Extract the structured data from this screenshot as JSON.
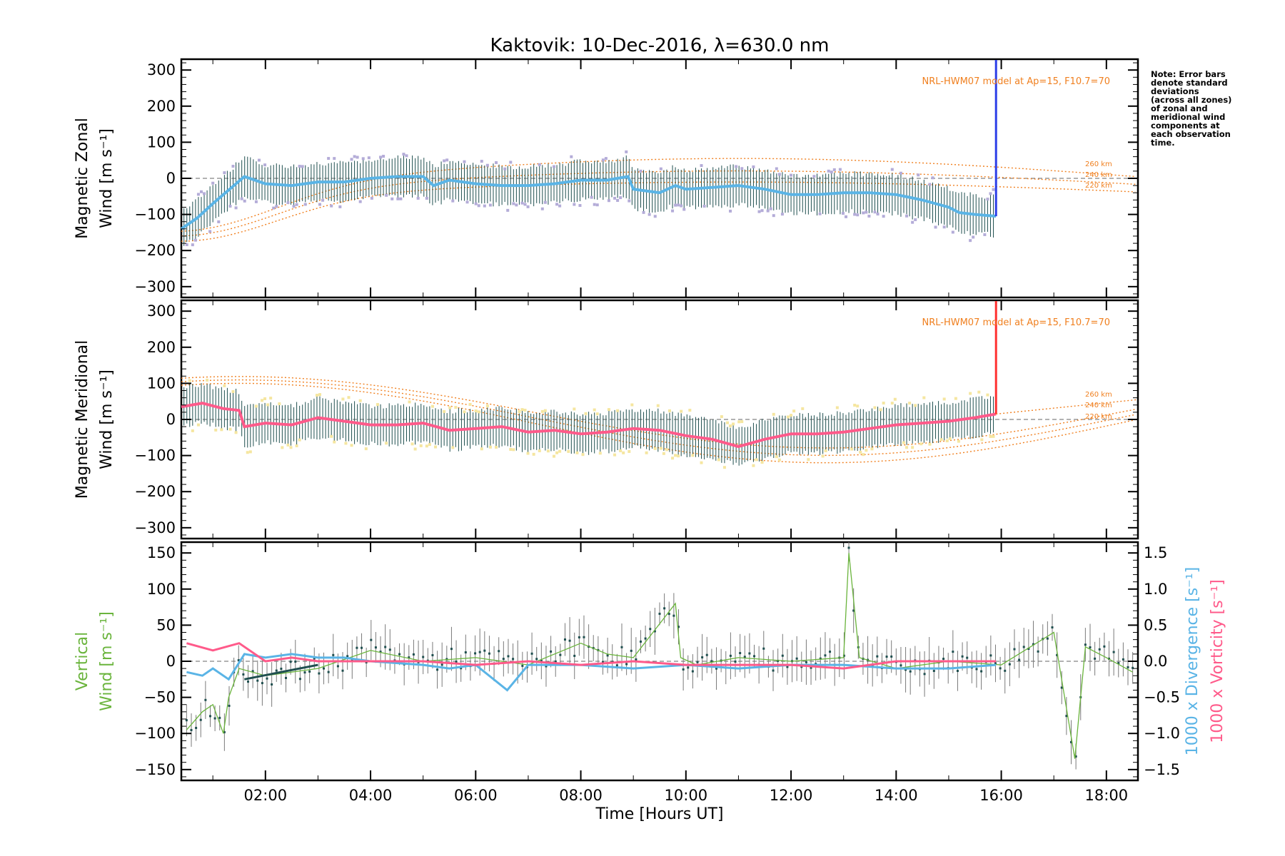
{
  "title": "Kaktovik: 10-Dec-2016, λ=630.0 nm",
  "note": "Note: Error bars denote standard deviations (across all zones) of zonal and meridional wind components at each observation time.",
  "note_lines": [
    "Note: Error bars",
    "denote standard",
    "deviations",
    "(across all zones)",
    "of zonal and",
    "meridional wind",
    "components at",
    "each observation",
    "time."
  ],
  "xlabel": "Time [Hours UT]",
  "x_ticks": [
    "02:00",
    "04:00",
    "06:00",
    "08:00",
    "10:00",
    "12:00",
    "14:00",
    "16:00",
    "18:00"
  ],
  "panels": {
    "zonal": {
      "ylabel_line1": "Magnetic Zonal",
      "ylabel_line2": "Wind [m s⁻¹]",
      "y_ticks": [
        "300",
        "200",
        "100",
        "0",
        "−100",
        "−200",
        "−300"
      ],
      "model_label": "NRL-HWM07 model at Ap=15, F10.7=70",
      "altitude_labels": [
        "260 km",
        "240 km",
        "220 km"
      ]
    },
    "meridional": {
      "ylabel_line1": "Magnetic Meridional",
      "ylabel_line2": "Wind [m s⁻¹]",
      "y_ticks": [
        "300",
        "200",
        "100",
        "0",
        "−100",
        "−200",
        "−300"
      ],
      "model_label": "NRL-HWM07 model at Ap=15, F10.7=70",
      "altitude_labels": [
        "260 km",
        "240 km",
        "220 km"
      ]
    },
    "vertical": {
      "ylabel_line1": "Vertical",
      "ylabel_line2": "Wind [m s⁻¹]",
      "y_ticks": [
        "150",
        "100",
        "50",
        "0",
        "−50",
        "−100",
        "−150"
      ],
      "right_ticks": [
        "1.5",
        "1.0",
        "0.5",
        "0.0",
        "−0.5",
        "−1.0",
        "−1.5"
      ],
      "right_label_div": "1000 x Divergence [s⁻¹]",
      "right_label_vort": "1000 x Vorticity [s⁻¹]"
    }
  },
  "colors": {
    "zonal_mean": "#5ab4e6",
    "zonal_end": "#2c3ee8",
    "zonal_scatter": "#b4acd8",
    "meridional_mean": "#ff5a8a",
    "meridional_end": "#ff3030",
    "meridional_scatter": "#f5e6a0",
    "error_bar": "#1f4f4f",
    "model": "#f08020",
    "vertical": "#6ab43c",
    "divergence": "#5ab4e6",
    "vorticity": "#ff5a8a"
  },
  "chart_data": [
    {
      "type": "line",
      "panel": "zonal",
      "x_unit": "hours UT",
      "xlim": [
        0.4,
        18.6
      ],
      "ylim": [
        -330,
        330
      ],
      "ylabel": "Magnetic Zonal Wind [m s-1]",
      "series": [
        {
          "x": [
            0.4,
            0.7,
            1.0,
            1.4,
            1.6,
            2.0,
            2.5,
            3.0,
            3.5,
            4.0,
            4.5,
            5.0,
            5.2,
            5.5,
            6.0,
            6.5,
            7.0,
            7.5,
            8.0,
            8.5,
            8.9,
            9.0,
            9.5,
            9.8,
            10.0,
            10.5,
            11.0,
            11.5,
            12.0,
            12.5,
            13.0,
            13.5,
            14.0,
            14.5,
            15.0,
            15.2,
            15.5,
            15.9
          ],
          "y": [
            -140,
            -110,
            -70,
            -20,
            5,
            -15,
            -20,
            -10,
            -10,
            0,
            5,
            5,
            -20,
            -5,
            -15,
            -20,
            -20,
            -15,
            -5,
            -5,
            5,
            -30,
            -40,
            -20,
            -30,
            -25,
            -20,
            -30,
            -45,
            -45,
            -40,
            -40,
            -45,
            -60,
            -80,
            -95,
            -100,
            -105
          ]
        }
      ]
    },
    {
      "type": "line",
      "panel": "meridional",
      "x_unit": "hours UT",
      "xlim": [
        0.4,
        18.6
      ],
      "ylim": [
        -330,
        330
      ],
      "ylabel": "Magnetic Meridional Wind [m s-1]",
      "series": [
        {
          "x": [
            0.4,
            0.8,
            1.2,
            1.5,
            1.6,
            2.0,
            2.5,
            3.0,
            3.5,
            4.0,
            4.5,
            5.0,
            5.5,
            6.0,
            6.5,
            7.0,
            7.5,
            8.0,
            8.5,
            9.0,
            9.5,
            10.0,
            10.5,
            11.0,
            11.5,
            12.0,
            12.5,
            13.0,
            13.5,
            14.0,
            14.5,
            15.0,
            15.5,
            15.9
          ],
          "y": [
            35,
            45,
            30,
            25,
            -20,
            -10,
            -15,
            5,
            -5,
            -15,
            -15,
            -10,
            -30,
            -25,
            -20,
            -35,
            -30,
            -40,
            -35,
            -25,
            -30,
            -45,
            -55,
            -75,
            -55,
            -40,
            -40,
            -35,
            -25,
            -15,
            -10,
            -5,
            5,
            15
          ]
        }
      ]
    },
    {
      "type": "line",
      "panel": "vertical",
      "x_unit": "hours UT",
      "xlim": [
        0.4,
        18.6
      ],
      "ylim": [
        -165,
        165
      ],
      "y2lim": [
        -1.65,
        1.65
      ],
      "ylabel": "Vertical Wind [m s-1]",
      "y2label": "1000 x Divergence / Vorticity [s-1]",
      "series": [
        {
          "name": "Vertical",
          "x": [
            0.5,
            0.8,
            1.0,
            1.2,
            1.3,
            1.5,
            2.0,
            3.0,
            4.0,
            5.0,
            6.0,
            7.0,
            8.0,
            8.5,
            9.0,
            9.8,
            9.9,
            10.2,
            11.0,
            12.0,
            13.0,
            13.1,
            13.3,
            14.0,
            15.0,
            16.0,
            17.0,
            17.4,
            17.6,
            18.0,
            18.5
          ],
          "y": [
            -95,
            -70,
            -60,
            -100,
            -50,
            -10,
            -20,
            -10,
            15,
            0,
            5,
            -5,
            25,
            10,
            5,
            80,
            5,
            -5,
            5,
            0,
            5,
            150,
            5,
            -10,
            0,
            -5,
            40,
            -135,
            20,
            5,
            -15
          ]
        },
        {
          "name": "1000 x Divergence",
          "x": [
            0.5,
            0.8,
            1.0,
            1.3,
            1.6,
            2.0,
            2.5,
            3.0,
            3.5,
            4.0,
            5.0,
            5.5,
            6.0,
            6.6,
            7.0,
            8.0,
            9.0,
            10.0,
            11.0,
            12.0,
            13.0,
            14.0,
            15.0,
            15.9
          ],
          "y": [
            -0.15,
            -0.2,
            -0.1,
            -0.25,
            0.1,
            0.05,
            0.1,
            0.05,
            0.05,
            0.0,
            -0.05,
            -0.1,
            -0.05,
            -0.4,
            -0.05,
            -0.05,
            -0.1,
            -0.05,
            -0.1,
            -0.05,
            -0.05,
            -0.1,
            -0.1,
            -0.05
          ]
        },
        {
          "name": "1000 x Vorticity",
          "x": [
            0.5,
            1.0,
            1.5,
            2.0,
            2.5,
            3.0,
            4.0,
            5.0,
            6.0,
            7.0,
            8.0,
            9.0,
            10.0,
            11.0,
            12.0,
            13.0,
            14.0,
            15.0,
            15.9
          ],
          "y": [
            0.25,
            0.15,
            0.25,
            0.0,
            0.05,
            0.0,
            0.0,
            0.0,
            -0.05,
            0.0,
            -0.05,
            0.0,
            -0.05,
            -0.05,
            -0.05,
            -0.1,
            0.0,
            0.0,
            0.0
          ]
        }
      ]
    }
  ]
}
